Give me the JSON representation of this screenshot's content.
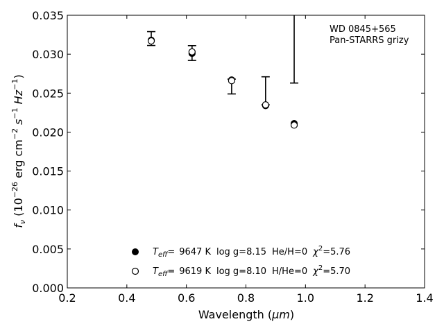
{
  "chart_data": {
    "type": "scatter",
    "title": "",
    "xlabel": "Wavelength (",
    "xlabel_unit": "μm",
    "ylabel_prefix": "f",
    "ylabel_sub": "ν",
    "ylabel_rest": " (10",
    "ylabel_exp": "−26",
    "ylabel_units": " erg cm",
    "ylabel_u1": "−2",
    "ylabel_u2": " s",
    "ylabel_u3": "−1",
    "ylabel_u4": " Hz",
    "ylabel_u5": "−1",
    "xlim": [
      0.2,
      1.4
    ],
    "ylim": [
      0.0,
      0.035
    ],
    "xticks": [
      "0.2",
      "0.4",
      "0.6",
      "0.8",
      "1.0",
      "1.2",
      "1.4"
    ],
    "yticks": [
      "0.000",
      "0.005",
      "0.010",
      "0.015",
      "0.020",
      "0.025",
      "0.030",
      "0.035"
    ],
    "annotation": [
      "WD 0845+565",
      "Pan-STARRS grizy"
    ],
    "grid": false,
    "legend_position": "bottom-center",
    "observed": [
      {
        "x": 0.482,
        "y": 0.0302,
        "yerr_low": 0.03112,
        "yerr_high": 0.0329
      },
      {
        "x": 0.619,
        "y": 0.0302,
        "yerr_low": 0.0292,
        "yerr_high": 0.0311
      },
      {
        "x": 0.752,
        "y": 0.0268,
        "yerr_low": 0.0249,
        "yerr_high": 0.0268
      },
      {
        "x": 0.866,
        "y": 0.0235,
        "yerr_low": 0.0235,
        "yerr_high": 0.0271
      },
      {
        "x": 0.962,
        "y": 0.0211,
        "yerr_low": 0.0263,
        "yerr_high": 0.035
      }
    ],
    "series": [
      {
        "name": "Teff= 9647 K log g=8.15 He/H=0 χ2=5.76",
        "marker": "filled-circle",
        "teff": "9647 K",
        "logg": "log g=8.15",
        "comp": "He/H=0",
        "chi2": "=5.76",
        "x": [
          0.482,
          0.619,
          0.752,
          0.866,
          0.962
        ],
        "y": [
          0.0318,
          0.0301,
          0.0267,
          0.0234,
          0.0211
        ]
      },
      {
        "name": "Teff= 9619 K log g=8.10 H/He=0 χ2=5.70",
        "marker": "open-circle",
        "teff": "9619 K",
        "logg": "log g=8.10",
        "comp": "H/He=0",
        "chi2": "=5.70",
        "x": [
          0.482,
          0.619,
          0.752,
          0.866,
          0.962
        ],
        "y": [
          0.0317,
          0.0303,
          0.0266,
          0.0235,
          0.0209
        ]
      }
    ],
    "legend_teff_label": "T",
    "legend_teff_sub": "eff",
    "legend_eq": "=",
    "legend_chi": "χ",
    "legend_chi_sup": "2"
  }
}
